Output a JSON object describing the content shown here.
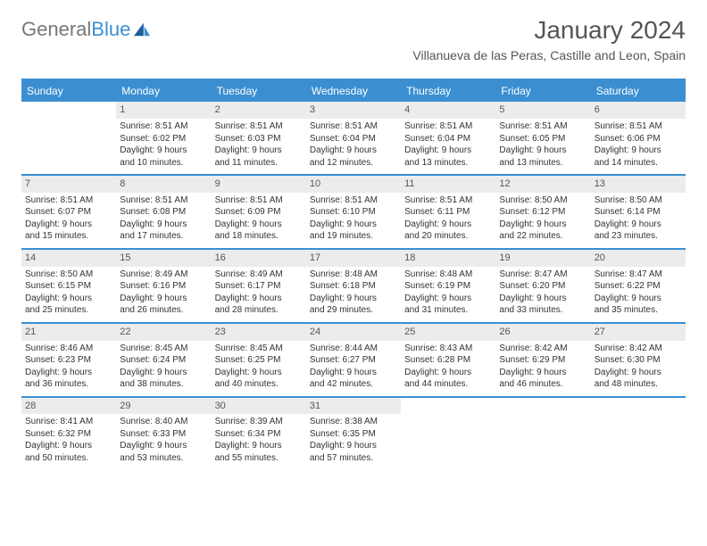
{
  "logo": {
    "text1": "General",
    "text2": "Blue"
  },
  "title": "January 2024",
  "subtitle": "Villanueva de las Peras, Castille and Leon, Spain",
  "colors": {
    "accent": "#3b8fd1",
    "daynum_bg": "#ececec",
    "text": "#333333",
    "logo_gray": "#777777",
    "background": "#ffffff"
  },
  "calendar": {
    "headers": [
      "Sunday",
      "Monday",
      "Tuesday",
      "Wednesday",
      "Thursday",
      "Friday",
      "Saturday"
    ],
    "weeks": [
      [
        {
          "day": "",
          "empty": true,
          "l1": "",
          "l2": "",
          "l3": "",
          "l4": ""
        },
        {
          "day": "1",
          "l1": "Sunrise: 8:51 AM",
          "l2": "Sunset: 6:02 PM",
          "l3": "Daylight: 9 hours",
          "l4": "and 10 minutes."
        },
        {
          "day": "2",
          "l1": "Sunrise: 8:51 AM",
          "l2": "Sunset: 6:03 PM",
          "l3": "Daylight: 9 hours",
          "l4": "and 11 minutes."
        },
        {
          "day": "3",
          "l1": "Sunrise: 8:51 AM",
          "l2": "Sunset: 6:04 PM",
          "l3": "Daylight: 9 hours",
          "l4": "and 12 minutes."
        },
        {
          "day": "4",
          "l1": "Sunrise: 8:51 AM",
          "l2": "Sunset: 6:04 PM",
          "l3": "Daylight: 9 hours",
          "l4": "and 13 minutes."
        },
        {
          "day": "5",
          "l1": "Sunrise: 8:51 AM",
          "l2": "Sunset: 6:05 PM",
          "l3": "Daylight: 9 hours",
          "l4": "and 13 minutes."
        },
        {
          "day": "6",
          "l1": "Sunrise: 8:51 AM",
          "l2": "Sunset: 6:06 PM",
          "l3": "Daylight: 9 hours",
          "l4": "and 14 minutes."
        }
      ],
      [
        {
          "day": "7",
          "l1": "Sunrise: 8:51 AM",
          "l2": "Sunset: 6:07 PM",
          "l3": "Daylight: 9 hours",
          "l4": "and 15 minutes."
        },
        {
          "day": "8",
          "l1": "Sunrise: 8:51 AM",
          "l2": "Sunset: 6:08 PM",
          "l3": "Daylight: 9 hours",
          "l4": "and 17 minutes."
        },
        {
          "day": "9",
          "l1": "Sunrise: 8:51 AM",
          "l2": "Sunset: 6:09 PM",
          "l3": "Daylight: 9 hours",
          "l4": "and 18 minutes."
        },
        {
          "day": "10",
          "l1": "Sunrise: 8:51 AM",
          "l2": "Sunset: 6:10 PM",
          "l3": "Daylight: 9 hours",
          "l4": "and 19 minutes."
        },
        {
          "day": "11",
          "l1": "Sunrise: 8:51 AM",
          "l2": "Sunset: 6:11 PM",
          "l3": "Daylight: 9 hours",
          "l4": "and 20 minutes."
        },
        {
          "day": "12",
          "l1": "Sunrise: 8:50 AM",
          "l2": "Sunset: 6:12 PM",
          "l3": "Daylight: 9 hours",
          "l4": "and 22 minutes."
        },
        {
          "day": "13",
          "l1": "Sunrise: 8:50 AM",
          "l2": "Sunset: 6:14 PM",
          "l3": "Daylight: 9 hours",
          "l4": "and 23 minutes."
        }
      ],
      [
        {
          "day": "14",
          "l1": "Sunrise: 8:50 AM",
          "l2": "Sunset: 6:15 PM",
          "l3": "Daylight: 9 hours",
          "l4": "and 25 minutes."
        },
        {
          "day": "15",
          "l1": "Sunrise: 8:49 AM",
          "l2": "Sunset: 6:16 PM",
          "l3": "Daylight: 9 hours",
          "l4": "and 26 minutes."
        },
        {
          "day": "16",
          "l1": "Sunrise: 8:49 AM",
          "l2": "Sunset: 6:17 PM",
          "l3": "Daylight: 9 hours",
          "l4": "and 28 minutes."
        },
        {
          "day": "17",
          "l1": "Sunrise: 8:48 AM",
          "l2": "Sunset: 6:18 PM",
          "l3": "Daylight: 9 hours",
          "l4": "and 29 minutes."
        },
        {
          "day": "18",
          "l1": "Sunrise: 8:48 AM",
          "l2": "Sunset: 6:19 PM",
          "l3": "Daylight: 9 hours",
          "l4": "and 31 minutes."
        },
        {
          "day": "19",
          "l1": "Sunrise: 8:47 AM",
          "l2": "Sunset: 6:20 PM",
          "l3": "Daylight: 9 hours",
          "l4": "and 33 minutes."
        },
        {
          "day": "20",
          "l1": "Sunrise: 8:47 AM",
          "l2": "Sunset: 6:22 PM",
          "l3": "Daylight: 9 hours",
          "l4": "and 35 minutes."
        }
      ],
      [
        {
          "day": "21",
          "l1": "Sunrise: 8:46 AM",
          "l2": "Sunset: 6:23 PM",
          "l3": "Daylight: 9 hours",
          "l4": "and 36 minutes."
        },
        {
          "day": "22",
          "l1": "Sunrise: 8:45 AM",
          "l2": "Sunset: 6:24 PM",
          "l3": "Daylight: 9 hours",
          "l4": "and 38 minutes."
        },
        {
          "day": "23",
          "l1": "Sunrise: 8:45 AM",
          "l2": "Sunset: 6:25 PM",
          "l3": "Daylight: 9 hours",
          "l4": "and 40 minutes."
        },
        {
          "day": "24",
          "l1": "Sunrise: 8:44 AM",
          "l2": "Sunset: 6:27 PM",
          "l3": "Daylight: 9 hours",
          "l4": "and 42 minutes."
        },
        {
          "day": "25",
          "l1": "Sunrise: 8:43 AM",
          "l2": "Sunset: 6:28 PM",
          "l3": "Daylight: 9 hours",
          "l4": "and 44 minutes."
        },
        {
          "day": "26",
          "l1": "Sunrise: 8:42 AM",
          "l2": "Sunset: 6:29 PM",
          "l3": "Daylight: 9 hours",
          "l4": "and 46 minutes."
        },
        {
          "day": "27",
          "l1": "Sunrise: 8:42 AM",
          "l2": "Sunset: 6:30 PM",
          "l3": "Daylight: 9 hours",
          "l4": "and 48 minutes."
        }
      ],
      [
        {
          "day": "28",
          "l1": "Sunrise: 8:41 AM",
          "l2": "Sunset: 6:32 PM",
          "l3": "Daylight: 9 hours",
          "l4": "and 50 minutes."
        },
        {
          "day": "29",
          "l1": "Sunrise: 8:40 AM",
          "l2": "Sunset: 6:33 PM",
          "l3": "Daylight: 9 hours",
          "l4": "and 53 minutes."
        },
        {
          "day": "30",
          "l1": "Sunrise: 8:39 AM",
          "l2": "Sunset: 6:34 PM",
          "l3": "Daylight: 9 hours",
          "l4": "and 55 minutes."
        },
        {
          "day": "31",
          "l1": "Sunrise: 8:38 AM",
          "l2": "Sunset: 6:35 PM",
          "l3": "Daylight: 9 hours",
          "l4": "and 57 minutes."
        },
        {
          "day": "",
          "empty": true,
          "l1": "",
          "l2": "",
          "l3": "",
          "l4": ""
        },
        {
          "day": "",
          "empty": true,
          "l1": "",
          "l2": "",
          "l3": "",
          "l4": ""
        },
        {
          "day": "",
          "empty": true,
          "l1": "",
          "l2": "",
          "l3": "",
          "l4": ""
        }
      ]
    ]
  }
}
